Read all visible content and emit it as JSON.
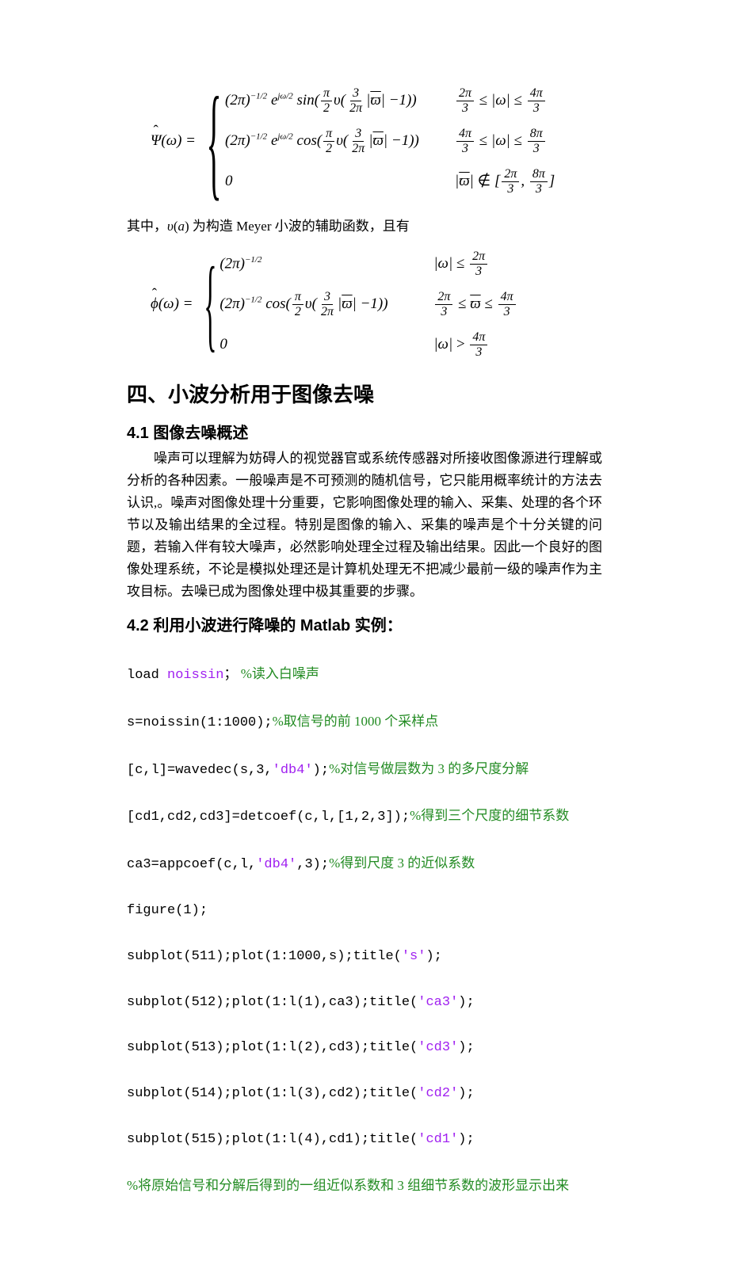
{
  "eq1": {
    "lhs": "Ψ̂(ω) =",
    "case1_expr": "(2π)⁻¹ᐟ² e^{jω/2} sin(π/2 υ(3/2π |ϖ| − 1))",
    "case1_cond_left": "2π",
    "case1_cond_left_den": "3",
    "case1_cond_mid": "≤ |ω| ≤",
    "case1_cond_right": "4π",
    "case1_cond_right_den": "3",
    "case2_expr": "(2π)⁻¹ᐟ² e^{jω/2} cos(π/2 υ(3/2π |ϖ| − 1))",
    "case2_cond_left": "4π",
    "case2_cond_left_den": "3",
    "case2_cond_mid": "≤ |ω| ≤",
    "case2_cond_right": "8π",
    "case2_cond_right_den": "3",
    "case3_expr": "0",
    "case3_cond_pre": "|ϖ| ∉ [",
    "case3_cond_a": "2π",
    "case3_cond_a_den": "3",
    "case3_cond_mid": ",",
    "case3_cond_b": "8π",
    "case3_cond_b_den": "3",
    "case3_cond_post": "]"
  },
  "para1": "其中，υ(a) 为构造 Meyer 小波的辅助函数，且有",
  "eq2": {
    "lhs": "ϕ̂(ω) =",
    "case1_expr": "(2π)⁻¹ᐟ²",
    "case1_cond_pre": "|ω| ≤",
    "case1_cond_a": "2π",
    "case1_cond_a_den": "3",
    "case2_expr": "(2π)⁻¹ᐟ² cos(π/2 υ(3/2π |ϖ| − 1))",
    "case2_cond_left": "2π",
    "case2_cond_left_den": "3",
    "case2_cond_mid": "≤ ϖ ≤",
    "case2_cond_right": "4π",
    "case2_cond_right_den": "3",
    "case3_expr": "0",
    "case3_cond_pre": "|ω| >",
    "case3_cond_a": "4π",
    "case3_cond_a_den": "3"
  },
  "heading1": "四、小波分析用于图像去噪",
  "heading2_1": "4.1 图像去噪概述",
  "body1": "噪声可以理解为妨碍人的视觉器官或系统传感器对所接收图像源进行理解或分析的各种因素。一般噪声是不可预测的随机信号，它只能用概率统计的方法去认识,。噪声对图像处理十分重要，它影响图像处理的输入、采集、处理的各个环节以及输出结果的全过程。特别是图像的输入、采集的噪声是个十分关键的问题，若输入伴有较大噪声，必然影响处理全过程及输出结果。因此一个良好的图像处理系统，不论是模拟处理还是计算机处理无不把减少最前一级的噪声作为主攻目标。去噪已成为图像处理中极其重要的步骤。",
  "heading2_2": "4.2 利用小波进行降噪的 Matlab 实例：",
  "code": {
    "l1_a": "load ",
    "l1_b": "noissin",
    "l1_c": "； ",
    "l1_d": "%读入白噪声",
    "l2_a": "s=noissin(1:1000);",
    "l2_b": "%取信号的前 1000 个采样点",
    "l3_a": "[c,l]=wavedec(s,3,",
    "l3_b": "'db4'",
    "l3_c": ");",
    "l3_d": "%对信号做层数为 3 的多尺度分解",
    "l4_a": "[cd1,cd2,cd3]=detcoef(c,l,[1,2,3]);",
    "l4_b": "%得到三个尺度的细节系数",
    "l5_a": "ca3=appcoef(c,l,",
    "l5_b": "'db4'",
    "l5_c": ",3);",
    "l5_d": "%得到尺度 3 的近似系数",
    "l6": "figure(1);",
    "l7_a": "subplot(511);plot(1:1000,s);title(",
    "l7_b": "'s'",
    "l7_c": ");",
    "l8_a": "subplot(512);plot(1:l(1),ca3);title(",
    "l8_b": "'ca3'",
    "l8_c": ");",
    "l9_a": "subplot(513);plot(1:l(2),cd3);title(",
    "l9_b": "'cd3'",
    "l9_c": ");",
    "l10_a": "subplot(514);plot(1:l(3),cd2);title(",
    "l10_b": "'cd2'",
    "l10_c": ");",
    "l11_a": "subplot(515);plot(1:l(4),cd1);title(",
    "l11_b": "'cd1'",
    "l11_c": ");",
    "l12": "%将原始信号和分解后得到的一组近似系数和 3 组细节系数的波形显示出来"
  },
  "style": {
    "code_default_color": "#000000",
    "code_string_color": "#a020f0",
    "code_comment_color": "#228b22",
    "body_font": "SimSun",
    "heading_font": "SimHei",
    "code_font": "Consolas",
    "background": "#ffffff",
    "body_fontsize": 17,
    "heading1_fontsize": 26,
    "heading2_fontsize": 20,
    "code_fontsize": 17
  }
}
